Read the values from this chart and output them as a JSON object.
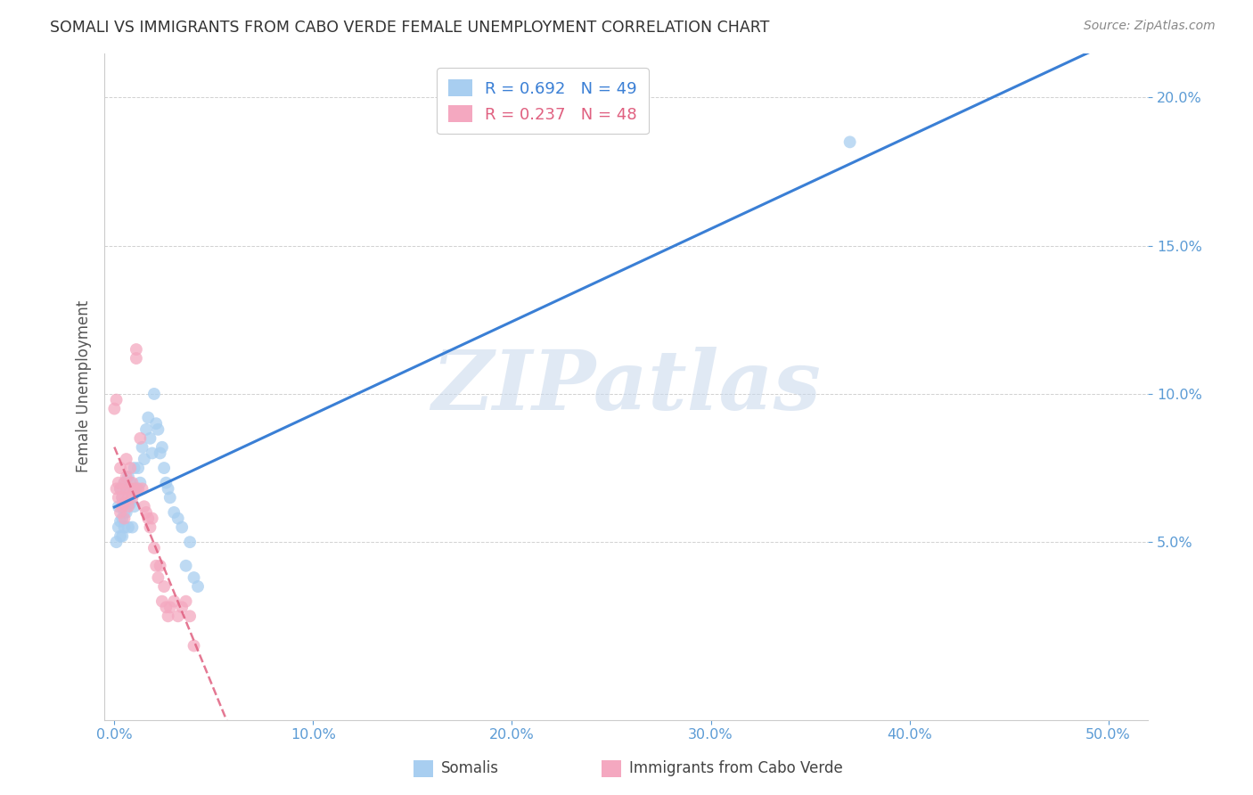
{
  "title": "SOMALI VS IMMIGRANTS FROM CABO VERDE FEMALE UNEMPLOYMENT CORRELATION CHART",
  "source": "Source: ZipAtlas.com",
  "xlabel_ticks": [
    "0.0%",
    "10.0%",
    "20.0%",
    "30.0%",
    "40.0%",
    "50.0%"
  ],
  "xlabel_vals": [
    0.0,
    0.1,
    0.2,
    0.3,
    0.4,
    0.5
  ],
  "ylabel": "Female Unemployment",
  "ylabel_ticks": [
    "5.0%",
    "10.0%",
    "15.0%",
    "20.0%"
  ],
  "ylabel_vals": [
    0.05,
    0.1,
    0.15,
    0.2
  ],
  "xlim": [
    -0.005,
    0.52
  ],
  "ylim": [
    -0.01,
    0.215
  ],
  "somali_R": 0.692,
  "somali_N": 49,
  "cabo_verde_R": 0.237,
  "cabo_verde_N": 48,
  "somali_color": "#a8cef0",
  "cabo_verde_color": "#f4a8c0",
  "trendline_somali_color": "#3a7fd5",
  "trendline_cabo_verde_color": "#e06080",
  "watermark_text": "ZIPatlas",
  "watermark_color": "#c8d8ec",
  "legend_label_somali": "Somalis",
  "legend_label_cabo_verde": "Immigrants from Cabo Verde",
  "tick_color": "#5b9bd5",
  "ylabel_color": "#555555",
  "somali_x": [
    0.001,
    0.002,
    0.002,
    0.003,
    0.003,
    0.003,
    0.004,
    0.004,
    0.004,
    0.005,
    0.005,
    0.005,
    0.006,
    0.006,
    0.007,
    0.007,
    0.007,
    0.008,
    0.008,
    0.009,
    0.009,
    0.01,
    0.01,
    0.011,
    0.012,
    0.013,
    0.014,
    0.015,
    0.016,
    0.017,
    0.018,
    0.019,
    0.02,
    0.021,
    0.022,
    0.023,
    0.024,
    0.025,
    0.026,
    0.027,
    0.028,
    0.03,
    0.032,
    0.034,
    0.036,
    0.038,
    0.04,
    0.37,
    0.042
  ],
  "somali_y": [
    0.05,
    0.062,
    0.055,
    0.068,
    0.057,
    0.052,
    0.065,
    0.058,
    0.052,
    0.07,
    0.06,
    0.055,
    0.068,
    0.06,
    0.072,
    0.063,
    0.055,
    0.07,
    0.063,
    0.067,
    0.055,
    0.075,
    0.062,
    0.068,
    0.075,
    0.07,
    0.082,
    0.078,
    0.088,
    0.092,
    0.085,
    0.08,
    0.1,
    0.09,
    0.088,
    0.08,
    0.082,
    0.075,
    0.07,
    0.068,
    0.065,
    0.06,
    0.058,
    0.055,
    0.042,
    0.05,
    0.038,
    0.185,
    0.035
  ],
  "cabo_verde_x": [
    0.0,
    0.001,
    0.001,
    0.002,
    0.002,
    0.003,
    0.003,
    0.003,
    0.004,
    0.004,
    0.005,
    0.005,
    0.005,
    0.006,
    0.006,
    0.006,
    0.007,
    0.007,
    0.008,
    0.008,
    0.009,
    0.009,
    0.01,
    0.011,
    0.011,
    0.012,
    0.013,
    0.014,
    0.015,
    0.016,
    0.017,
    0.018,
    0.019,
    0.02,
    0.021,
    0.022,
    0.023,
    0.024,
    0.025,
    0.026,
    0.027,
    0.028,
    0.03,
    0.032,
    0.034,
    0.036,
    0.038,
    0.04
  ],
  "cabo_verde_y": [
    0.095,
    0.068,
    0.098,
    0.07,
    0.065,
    0.075,
    0.068,
    0.06,
    0.062,
    0.065,
    0.07,
    0.063,
    0.058,
    0.078,
    0.068,
    0.072,
    0.062,
    0.065,
    0.075,
    0.068,
    0.07,
    0.065,
    0.068,
    0.115,
    0.112,
    0.068,
    0.085,
    0.068,
    0.062,
    0.06,
    0.058,
    0.055,
    0.058,
    0.048,
    0.042,
    0.038,
    0.042,
    0.03,
    0.035,
    0.028,
    0.025,
    0.028,
    0.03,
    0.025,
    0.028,
    0.03,
    0.025,
    0.015
  ]
}
